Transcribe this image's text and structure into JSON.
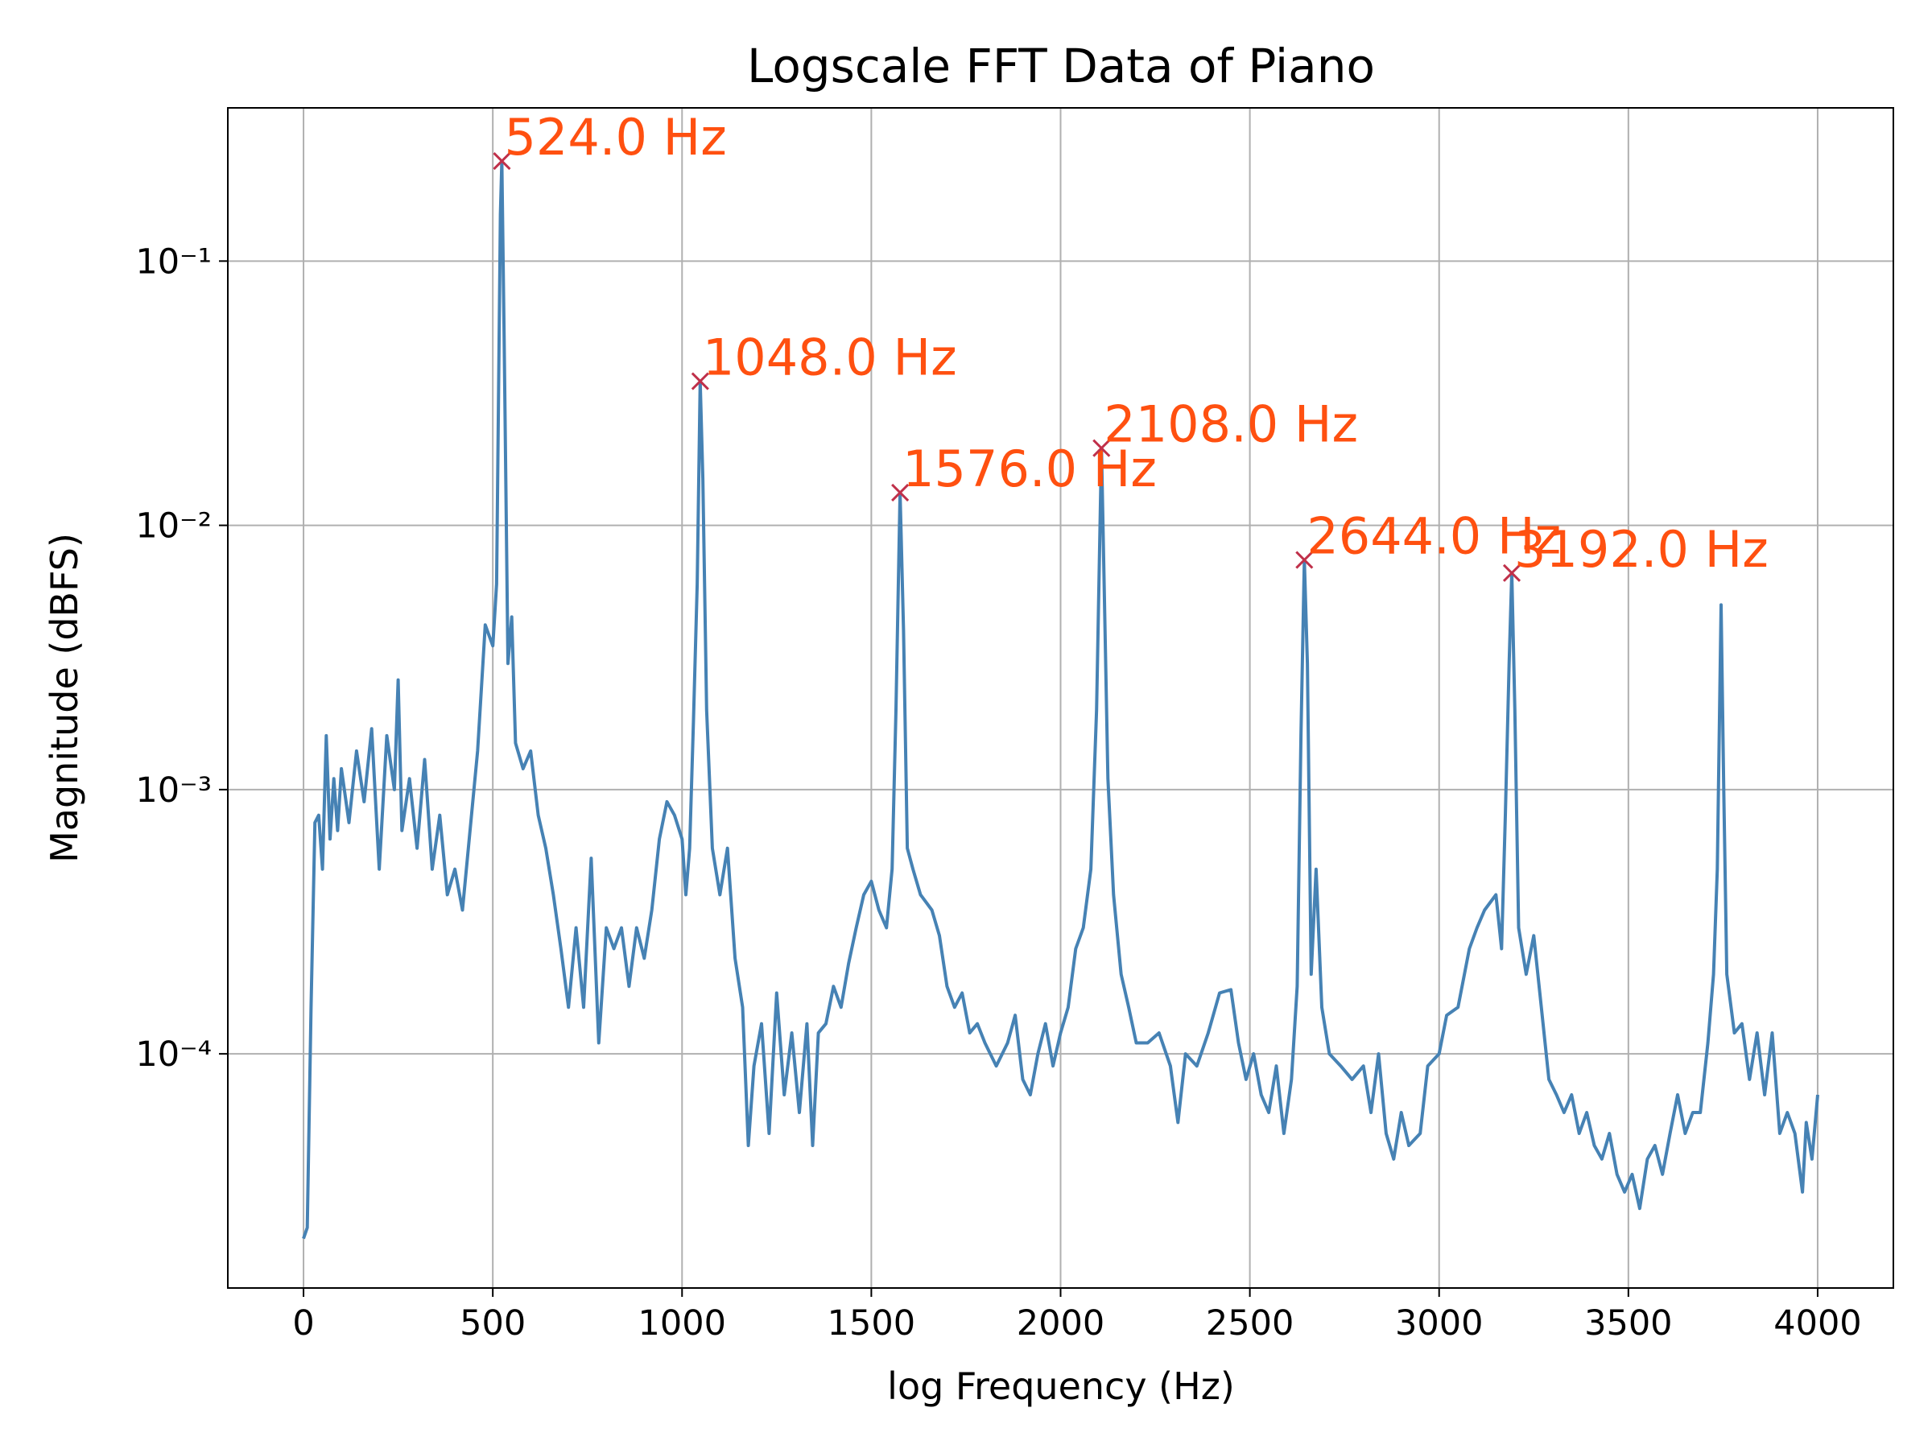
{
  "chart_data": {
    "type": "line",
    "title": "Logscale FFT Data of Piano",
    "x_label": "log Frequency (Hz)",
    "y_label": "Magnitude (dBFS)",
    "y_scale": "log",
    "grid": true,
    "color": "#4682b4",
    "xlim": [
      -200,
      4200
    ],
    "xticks": [
      0,
      500,
      1000,
      1500,
      2000,
      2500,
      3000,
      3500,
      4000
    ],
    "ylim": [
      1.3e-05,
      0.38
    ],
    "yticks": [
      {
        "value": 0.0001,
        "label": "10⁻⁴"
      },
      {
        "value": 0.001,
        "label": "10⁻³"
      },
      {
        "value": 0.01,
        "label": "10⁻²"
      },
      {
        "value": 0.1,
        "label": "10⁻¹"
      }
    ],
    "x": [
      0,
      10,
      20,
      30,
      40,
      50,
      60,
      70,
      80,
      90,
      100,
      120,
      140,
      160,
      180,
      200,
      220,
      240,
      250,
      260,
      280,
      300,
      320,
      340,
      360,
      380,
      400,
      420,
      440,
      460,
      480,
      500,
      510,
      520,
      524,
      530,
      540,
      550,
      560,
      580,
      600,
      620,
      640,
      660,
      680,
      700,
      720,
      740,
      760,
      780,
      800,
      820,
      840,
      860,
      880,
      900,
      920,
      940,
      960,
      980,
      1000,
      1010,
      1020,
      1030,
      1040,
      1048,
      1055,
      1065,
      1080,
      1100,
      1120,
      1140,
      1160,
      1175,
      1190,
      1210,
      1230,
      1250,
      1270,
      1290,
      1310,
      1330,
      1345,
      1360,
      1380,
      1400,
      1420,
      1440,
      1460,
      1480,
      1500,
      1520,
      1540,
      1555,
      1565,
      1576,
      1585,
      1595,
      1610,
      1630,
      1660,
      1680,
      1700,
      1720,
      1740,
      1760,
      1780,
      1800,
      1830,
      1860,
      1880,
      1900,
      1920,
      1940,
      1960,
      1980,
      2000,
      2020,
      2040,
      2060,
      2080,
      2095,
      2108,
      2115,
      2125,
      2140,
      2160,
      2180,
      2200,
      2230,
      2260,
      2290,
      2310,
      2330,
      2360,
      2390,
      2420,
      2450,
      2470,
      2490,
      2510,
      2530,
      2550,
      2570,
      2590,
      2610,
      2625,
      2635,
      2644,
      2652,
      2662,
      2675,
      2690,
      2710,
      2740,
      2770,
      2800,
      2820,
      2840,
      2860,
      2880,
      2900,
      2920,
      2950,
      2970,
      3000,
      3020,
      3050,
      3080,
      3100,
      3120,
      3150,
      3165,
      3175,
      3185,
      3192,
      3200,
      3210,
      3230,
      3250,
      3270,
      3290,
      3310,
      3330,
      3350,
      3370,
      3390,
      3410,
      3430,
      3450,
      3470,
      3490,
      3510,
      3530,
      3550,
      3570,
      3590,
      3610,
      3630,
      3650,
      3670,
      3690,
      3710,
      3725,
      3735,
      3745,
      3752,
      3760,
      3780,
      3800,
      3820,
      3840,
      3860,
      3880,
      3900,
      3920,
      3940,
      3960,
      3970,
      3985,
      4000
    ],
    "values": [
      2e-05,
      2.2e-05,
      0.00015,
      0.00075,
      0.0008,
      0.0005,
      0.0016,
      0.00065,
      0.0011,
      0.0007,
      0.0012,
      0.00075,
      0.0014,
      0.0009,
      0.0017,
      0.0005,
      0.0016,
      0.001,
      0.0026,
      0.0007,
      0.0011,
      0.0006,
      0.0013,
      0.0005,
      0.0008,
      0.0004,
      0.0005,
      0.00035,
      0.0007,
      0.0014,
      0.0042,
      0.0035,
      0.006,
      0.15,
      0.239,
      0.05,
      0.003,
      0.0045,
      0.0015,
      0.0012,
      0.0014,
      0.0008,
      0.0006,
      0.0004,
      0.00025,
      0.00015,
      0.0003,
      0.00015,
      0.00055,
      0.00011,
      0.0003,
      0.00025,
      0.0003,
      0.00018,
      0.0003,
      0.00023,
      0.00035,
      0.00065,
      0.0009,
      0.0008,
      0.00065,
      0.0004,
      0.0006,
      0.0018,
      0.006,
      0.0351,
      0.015,
      0.002,
      0.0006,
      0.0004,
      0.0006,
      0.00023,
      0.00015,
      4.5e-05,
      9e-05,
      0.00013,
      5e-05,
      0.00017,
      7e-05,
      0.00012,
      6e-05,
      0.00013,
      4.5e-05,
      0.00012,
      0.00013,
      0.00018,
      0.00015,
      0.00022,
      0.0003,
      0.0004,
      0.00045,
      0.00035,
      0.0003,
      0.0005,
      0.002,
      0.0133,
      0.004,
      0.0006,
      0.0005,
      0.0004,
      0.00035,
      0.00028,
      0.00018,
      0.00015,
      0.00017,
      0.00012,
      0.00013,
      0.00011,
      9e-05,
      0.00011,
      0.00014,
      8e-05,
      7e-05,
      0.0001,
      0.00013,
      9e-05,
      0.00012,
      0.00015,
      0.00025,
      0.0003,
      0.0005,
      0.002,
      0.0196,
      0.006,
      0.0011,
      0.0004,
      0.0002,
      0.00015,
      0.00011,
      0.00011,
      0.00012,
      9e-05,
      5.5e-05,
      0.0001,
      9e-05,
      0.00012,
      0.00017,
      0.000175,
      0.00011,
      8e-05,
      0.0001,
      7e-05,
      6e-05,
      9e-05,
      5e-05,
      8e-05,
      0.00018,
      0.0016,
      0.0074,
      0.003,
      0.0002,
      0.0005,
      0.00015,
      0.0001,
      9e-05,
      8e-05,
      9e-05,
      6e-05,
      0.0001,
      5e-05,
      4e-05,
      6e-05,
      4.5e-05,
      5e-05,
      9e-05,
      0.0001,
      0.00014,
      0.00015,
      0.00025,
      0.0003,
      0.00035,
      0.0004,
      0.00025,
      0.0008,
      0.003,
      0.0066,
      0.002,
      0.0003,
      0.0002,
      0.00028,
      0.00015,
      8e-05,
      7e-05,
      6e-05,
      7e-05,
      5e-05,
      6e-05,
      4.5e-05,
      4e-05,
      5e-05,
      3.5e-05,
      3e-05,
      3.5e-05,
      2.6e-05,
      4e-05,
      4.5e-05,
      3.5e-05,
      5e-05,
      7e-05,
      5e-05,
      6e-05,
      6e-05,
      0.00011,
      0.0002,
      0.0005,
      0.005,
      0.001,
      0.0002,
      0.00012,
      0.00013,
      8e-05,
      0.00012,
      7e-05,
      0.00012,
      5e-05,
      6e-05,
      5e-05,
      3e-05,
      5.5e-05,
      4e-05,
      7e-05
    ],
    "annotations": [
      {
        "x": 524,
        "y": 0.239,
        "text": "524.0 Hz"
      },
      {
        "x": 1048,
        "y": 0.0351,
        "text": "1048.0 Hz"
      },
      {
        "x": 1576,
        "y": 0.0133,
        "text": "1576.0 Hz"
      },
      {
        "x": 2108,
        "y": 0.0196,
        "text": "2108.0 Hz"
      },
      {
        "x": 2644,
        "y": 0.0074,
        "text": "2644.0 Hz"
      },
      {
        "x": 3192,
        "y": 0.0066,
        "text": "3192.0 Hz"
      }
    ],
    "marker_color": "#c0304a",
    "annotation_color": "#ff5010"
  }
}
